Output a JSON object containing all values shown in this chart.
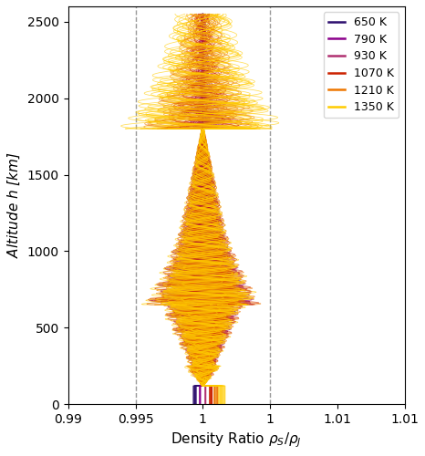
{
  "xlabel": "Density Ratio $\\rho_S/\\rho_J$",
  "ylabel": "Altitude $h$ [km]",
  "xlim": [
    0.99,
    1.015
  ],
  "ylim": [
    0,
    2600
  ],
  "yticks": [
    0,
    500,
    1000,
    1500,
    2000,
    2500
  ],
  "xticks": [
    0.99,
    0.995,
    1.0,
    1.005,
    1.01,
    1.015
  ],
  "vline1": 0.995,
  "vline2": 1.005,
  "temperatures": [
    650,
    790,
    930,
    1070,
    1210,
    1350
  ],
  "plot_colors": [
    "#2d0f6f",
    "#8b008b",
    "#b03070",
    "#cc2200",
    "#ee7700",
    "#ffcc00"
  ],
  "figsize": [
    4.66,
    5.0
  ],
  "dpi": 100
}
